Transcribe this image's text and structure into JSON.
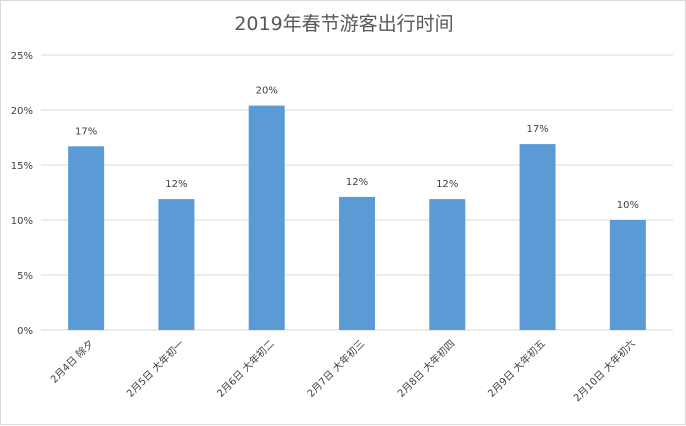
{
  "chart_data": {
    "type": "bar",
    "title": "2019年春节游客出行时间",
    "categories": [
      "2月4日 除夕",
      "2月5日 大年初一",
      "2月6日 大年初二",
      "2月7日 大年初三",
      "2月8日 大年初四",
      "2月9日 大年初五",
      "2月10日 大年初六"
    ],
    "values": [
      16.7,
      11.9,
      20.4,
      12.1,
      11.9,
      16.9,
      10.0
    ],
    "data_labels": [
      "17%",
      "12%",
      "20%",
      "12%",
      "12%",
      "17%",
      "10%"
    ],
    "ylim": [
      0,
      25
    ],
    "yticks": [
      0,
      5,
      10,
      15,
      20,
      25
    ],
    "ytick_labels": [
      "0%",
      "5%",
      "10%",
      "15%",
      "20%",
      "25%"
    ],
    "xlabel": "",
    "ylabel": "",
    "grid": true,
    "legend": "none",
    "colors": {
      "bar": "#5b9bd5",
      "grid": "#d9d9d9",
      "text": "#404040",
      "title": "#595959"
    }
  }
}
